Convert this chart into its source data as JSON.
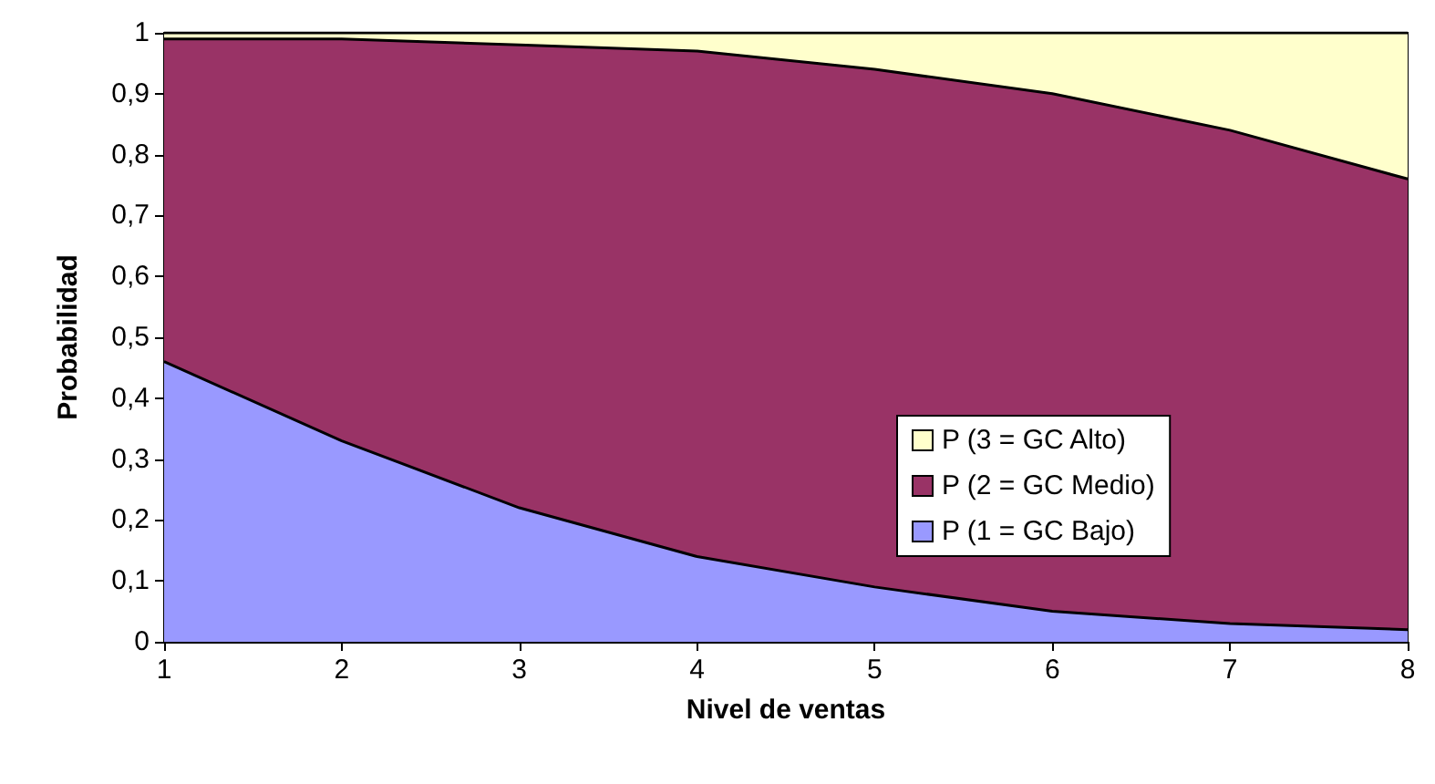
{
  "chart_data": {
    "type": "area",
    "stacked": true,
    "xlabel": "Nivel de ventas",
    "ylabel": "Probabilidad",
    "x": [
      1,
      2,
      3,
      4,
      5,
      6,
      7,
      8
    ],
    "series": [
      {
        "name": "P (1 = GC Bajo)",
        "color": "#9999ff",
        "values": [
          0.46,
          0.33,
          0.22,
          0.14,
          0.09,
          0.05,
          0.03,
          0.02
        ]
      },
      {
        "name": "P (2 = GC Medio)",
        "color": "#993366",
        "values": [
          0.53,
          0.66,
          0.76,
          0.83,
          0.85,
          0.85,
          0.81,
          0.74
        ]
      },
      {
        "name": "P (3 = GC Alto)",
        "color": "#ffffcc",
        "values": [
          0.01,
          0.01,
          0.02,
          0.03,
          0.06,
          0.1,
          0.16,
          0.24
        ]
      }
    ],
    "xlim": [
      1,
      8
    ],
    "xticks": [
      1,
      2,
      3,
      4,
      5,
      6,
      7,
      8
    ],
    "ylim": [
      0,
      1
    ],
    "yticks": [
      0,
      {
        "value": 0.1,
        "label": "0,1"
      },
      {
        "value": 0.2,
        "label": "0,2"
      },
      {
        "value": 0.3,
        "label": "0,3"
      },
      {
        "value": 0.4,
        "label": "0,4"
      },
      {
        "value": 0.5,
        "label": "0,5"
      },
      {
        "value": 0.6,
        "label": "0,6"
      },
      {
        "value": 0.7,
        "label": "0,7"
      },
      {
        "value": 0.8,
        "label": "0,8"
      },
      {
        "value": 0.9,
        "label": "0,9"
      },
      1
    ],
    "grid": false,
    "legend": "right",
    "marker": "none",
    "line_style": "solid"
  }
}
